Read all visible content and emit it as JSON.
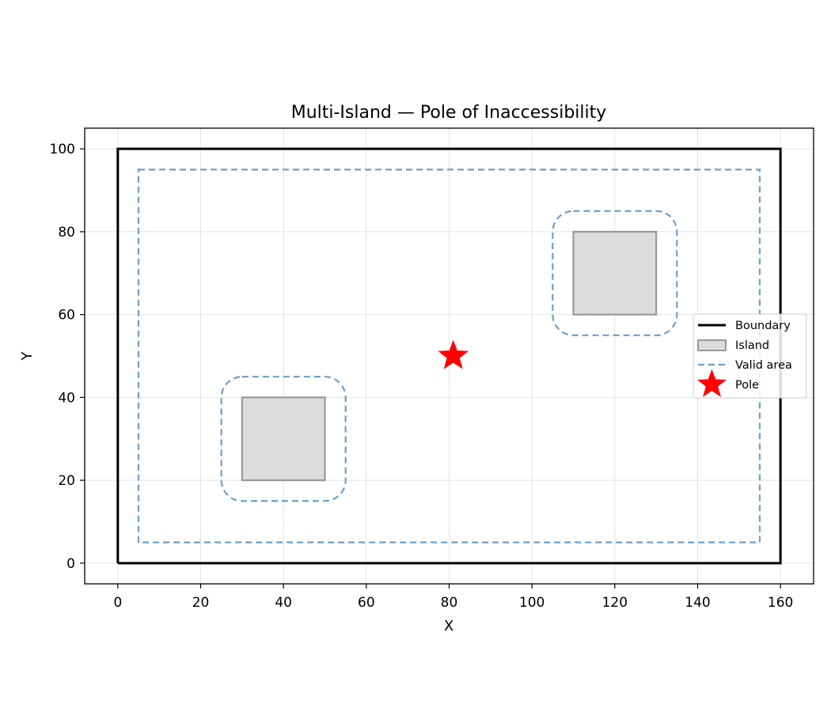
{
  "chart_data": {
    "type": "scatter",
    "title": "Multi-Island — Pole of Inaccessibility",
    "xlabel": "X",
    "ylabel": "Y",
    "xlim": [
      -8,
      168
    ],
    "ylim": [
      -5,
      105
    ],
    "xticks": [
      0,
      20,
      40,
      60,
      80,
      100,
      120,
      140,
      160
    ],
    "yticks": [
      0,
      20,
      40,
      60,
      80,
      100
    ],
    "grid": true,
    "legend_position": "center-right",
    "boundary": {
      "name": "Boundary",
      "color": "#000000",
      "points": [
        [
          0,
          0
        ],
        [
          160,
          0
        ],
        [
          160,
          100
        ],
        [
          0,
          100
        ],
        [
          0,
          0
        ]
      ]
    },
    "islands": [
      {
        "name": "Island",
        "x0": 30,
        "y0": 20,
        "x1": 50,
        "y1": 40
      },
      {
        "name": "Island",
        "x0": 110,
        "y0": 60,
        "x1": 130,
        "y1": 80
      }
    ],
    "island_style": {
      "fill": "#dcdcdc",
      "edge": "#999999"
    },
    "valid_area": {
      "name": "Valid area",
      "color": "#6f9fc8",
      "outer": {
        "x0": 5,
        "y0": 5,
        "x1": 155,
        "y1": 95
      },
      "island_buffers": [
        {
          "x0": 25,
          "y0": 15,
          "x1": 55,
          "y1": 45,
          "r": 5
        },
        {
          "x0": 105,
          "y0": 55,
          "x1": 135,
          "y1": 85,
          "r": 5
        }
      ]
    },
    "pole": {
      "name": "Pole",
      "x": 81,
      "y": 50,
      "color": "#ff0000"
    },
    "legend": [
      {
        "label": "Boundary",
        "kind": "line"
      },
      {
        "label": "Island",
        "kind": "patch"
      },
      {
        "label": "Valid area",
        "kind": "dashed"
      },
      {
        "label": "Pole",
        "kind": "star"
      }
    ]
  }
}
